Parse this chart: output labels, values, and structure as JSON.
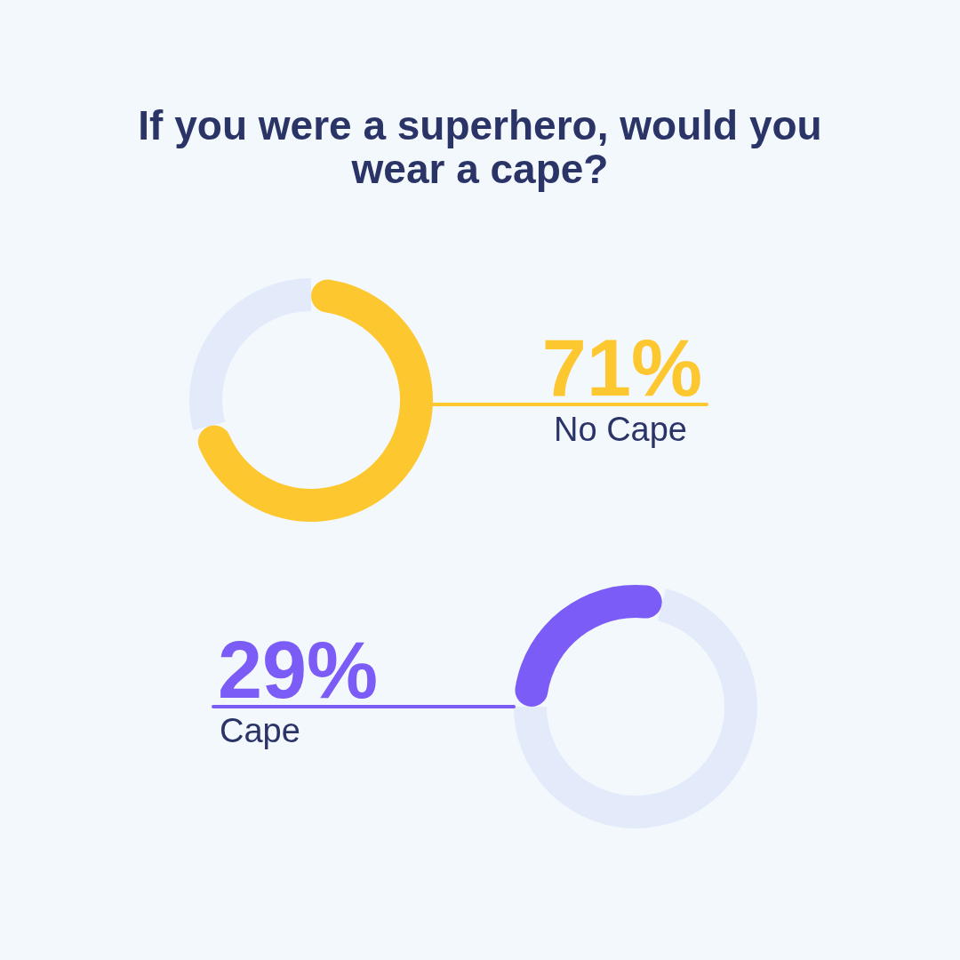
{
  "chart_data": [
    {
      "type": "donut",
      "title": "If you were a superhero, would you wear a cape?",
      "categories": [
        "No Cape",
        null
      ],
      "values": [
        71,
        29
      ],
      "colors": [
        "#fdc730",
        "#e3ebfb"
      ],
      "value_labels": [
        "71%",
        null
      ]
    },
    {
      "type": "donut",
      "categories": [
        "Cape",
        null
      ],
      "values": [
        29,
        71
      ],
      "colors": [
        "#7b5cf6",
        "#e3ebfb"
      ],
      "value_labels": [
        "29%",
        null
      ]
    }
  ]
}
